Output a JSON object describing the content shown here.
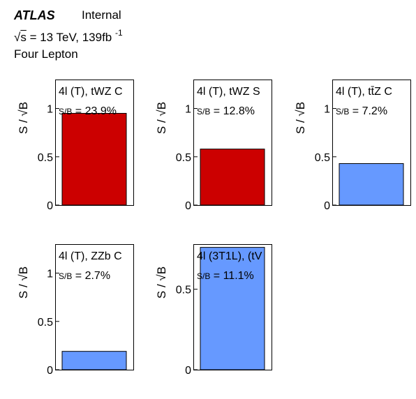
{
  "header": {
    "experiment": "ATLAS",
    "status": "Internal",
    "energy_prefix": "√",
    "energy_s": "s",
    "energy_value": " = 13 TeV, 139fb",
    "lumi_exp": "-1",
    "region_group": "Four Lepton"
  },
  "colors": {
    "red": "#cc0000",
    "blue": "#6699ff"
  },
  "chart_data": [
    {
      "type": "bar",
      "title": "4l (T), tWZ C",
      "sb_label": "S/B = 23.9%",
      "ylabel": "S / √B",
      "value": 0.95,
      "ylim": [
        0,
        1.3
      ],
      "yticks": [
        0,
        0.5,
        1
      ],
      "ytick_labels": [
        "0",
        "0.5",
        "1"
      ],
      "color": "#cc0000"
    },
    {
      "type": "bar",
      "title": "4l (T), tWZ S",
      "sb_label": "S/B = 12.8%",
      "ylabel": "S / √B",
      "value": 0.58,
      "ylim": [
        0,
        1.3
      ],
      "yticks": [
        0,
        0.5,
        1
      ],
      "ytick_labels": [
        "0",
        "0.5",
        "1"
      ],
      "color": "#cc0000"
    },
    {
      "type": "bar",
      "title": "4l (T),  tt̄Z C",
      "sb_label": "S/B = 7.2%",
      "ylabel": "S / √B",
      "value": 0.43,
      "ylim": [
        0,
        1.3
      ],
      "yticks": [
        0,
        0.5,
        1
      ],
      "ytick_labels": [
        "0",
        "0.5",
        "1"
      ],
      "color": "#6699ff"
    },
    {
      "type": "bar",
      "title": "4l (T), ZZb C",
      "sb_label": "S/B = 2.7%",
      "ylabel": "S / √B",
      "value": 0.19,
      "ylim": [
        0,
        1.3
      ],
      "yticks": [
        0,
        0.5,
        1
      ],
      "ytick_labels": [
        "0",
        "0.5",
        "1"
      ],
      "color": "#6699ff"
    },
    {
      "type": "bar",
      "title": "4l (3T1L), (tV",
      "sb_label": "S/B = 11.1%",
      "ylabel": "S / √B",
      "value": 0.76,
      "ylim": [
        0,
        0.78
      ],
      "yticks": [
        0,
        0.5
      ],
      "ytick_labels": [
        "0",
        "0.5"
      ],
      "color": "#6699ff"
    }
  ]
}
